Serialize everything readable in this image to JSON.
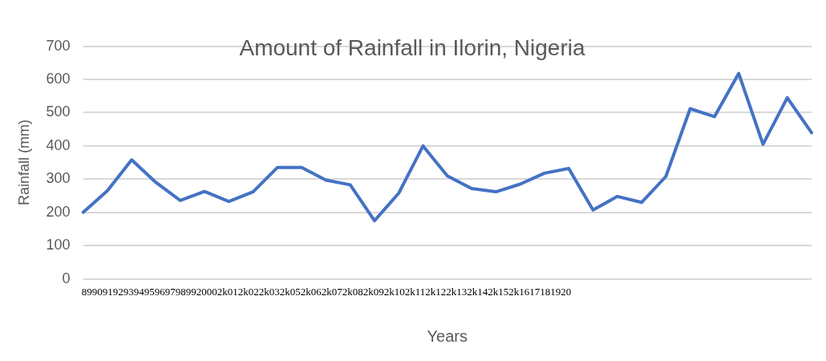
{
  "chart_data": {
    "type": "line",
    "title": "Amount of Rainfall in Ilorin, Nigeria",
    "xlabel": "Years",
    "ylabel": "Rainfall (mm)",
    "annotations": [
      "899091929394959697989920002k012k022k032k052k062k072k082k092k102k112k122k132k142k152k1617181920"
    ],
    "categories": [
      null,
      null,
      null,
      null,
      null,
      null,
      null,
      null,
      null,
      null,
      null,
      null,
      null,
      null,
      null,
      null,
      null,
      null,
      null,
      null,
      null,
      null,
      null,
      null,
      null,
      null,
      null,
      null,
      null,
      null,
      null
    ],
    "series": [
      {
        "color": "#4472c4",
        "values": [
          200,
          265,
          358,
          290,
          236,
          263,
          233,
          262,
          335,
          335,
          297,
          283,
          175,
          258,
          400,
          310,
          272,
          262,
          285,
          318,
          332,
          207,
          248,
          230,
          308,
          512,
          488,
          618,
          405,
          545,
          440
        ]
      }
    ],
    "ylim": [
      0,
      700
    ],
    "yticks": [
      0,
      100,
      200,
      300,
      400,
      500,
      600,
      700
    ],
    "grid": "y",
    "legend": false,
    "marker": "none",
    "line_style": "solid"
  }
}
